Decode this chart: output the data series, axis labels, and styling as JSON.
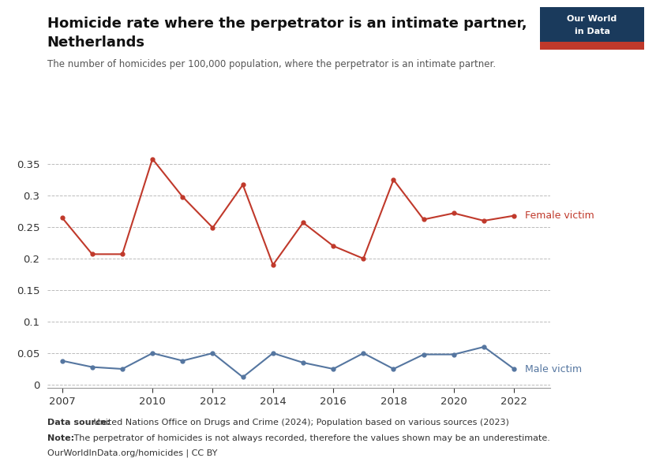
{
  "title_line1": "Homicide rate where the perpetrator is an intimate partner,",
  "title_line2": "Netherlands",
  "subtitle": "The number of homicides per 100,000 population, where the perpetrator is an intimate partner.",
  "years_female": [
    2007,
    2008,
    2009,
    2010,
    2011,
    2012,
    2013,
    2014,
    2015,
    2016,
    2017,
    2018,
    2019,
    2020,
    2021,
    2022
  ],
  "female_values": [
    0.265,
    0.207,
    0.207,
    0.358,
    0.298,
    0.249,
    0.317,
    0.19,
    0.257,
    0.22,
    0.2,
    0.325,
    0.262,
    0.272,
    0.26,
    0.268
  ],
  "years_male": [
    2007,
    2008,
    2009,
    2010,
    2011,
    2012,
    2013,
    2014,
    2015,
    2016,
    2017,
    2018,
    2019,
    2020,
    2021,
    2022
  ],
  "male_values": [
    0.038,
    0.028,
    0.025,
    0.05,
    0.038,
    0.05,
    0.012,
    0.05,
    0.035,
    0.025,
    0.05,
    0.025,
    0.048,
    0.048,
    0.06,
    0.025
  ],
  "female_color": "#C0392B",
  "male_color": "#5576A0",
  "background_color": "#FFFFFF",
  "ylim": [
    -0.005,
    0.385
  ],
  "yticks": [
    0,
    0.05,
    0.1,
    0.15,
    0.2,
    0.25,
    0.3,
    0.35
  ],
  "xticks": [
    2007,
    2010,
    2012,
    2014,
    2016,
    2018,
    2020,
    2022
  ],
  "data_source_bold": "Data source:",
  "data_source_rest": " United Nations Office on Drugs and Crime (2024); Population based on various sources (2023)",
  "note_bold": "Note:",
  "note_rest": " The perpetrator of homicides is not always recorded, therefore the values shown may be an underestimate.",
  "url": "OurWorldInData.org/homicides | CC BY",
  "owid_logo_bg": "#1a3a5c",
  "owid_red": "#C0392B"
}
